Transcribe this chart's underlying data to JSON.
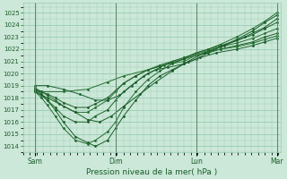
{
  "xlabel": "Pression niveau de la mer( hPa )",
  "ylim": [
    1013.5,
    1025.8
  ],
  "yticks": [
    1014,
    1015,
    1016,
    1017,
    1018,
    1019,
    1020,
    1021,
    1022,
    1023,
    1024,
    1025
  ],
  "xlim": [
    -0.15,
    3.05
  ],
  "xtick_positions": [
    0,
    1,
    2,
    3
  ],
  "xtick_labels": [
    "Sam",
    "Dim",
    "Lun",
    "Mar"
  ],
  "bg_color": "#cce8d8",
  "grid_color": "#99ccb3",
  "line_color": "#1a5c2a",
  "series": [
    {
      "x": [
        0.0,
        0.08,
        0.15,
        0.25,
        0.35,
        0.5,
        0.65,
        0.75,
        0.9,
        1.0,
        1.1,
        1.25,
        1.4,
        1.55,
        1.7,
        1.85,
        2.0,
        2.15,
        2.3,
        2.5,
        2.7,
        2.85,
        3.0
      ],
      "y": [
        1018.7,
        1018.3,
        1017.8,
        1017.0,
        1016.0,
        1014.8,
        1014.3,
        1014.0,
        1014.5,
        1015.5,
        1016.5,
        1017.8,
        1019.0,
        1019.8,
        1020.3,
        1020.8,
        1021.2,
        1021.7,
        1022.2,
        1022.8,
        1023.5,
        1024.2,
        1024.8
      ]
    },
    {
      "x": [
        0.0,
        0.08,
        0.15,
        0.25,
        0.35,
        0.5,
        0.65,
        0.75,
        0.9,
        1.0,
        1.1,
        1.25,
        1.4,
        1.55,
        1.7,
        1.85,
        2.0,
        2.15,
        2.3,
        2.5,
        2.7,
        2.85,
        3.0
      ],
      "y": [
        1018.5,
        1018.0,
        1017.4,
        1016.5,
        1015.5,
        1014.5,
        1014.2,
        1014.5,
        1015.2,
        1016.0,
        1017.2,
        1018.5,
        1019.5,
        1020.2,
        1020.8,
        1021.2,
        1021.7,
        1022.0,
        1022.4,
        1023.0,
        1023.7,
        1024.3,
        1025.0
      ]
    },
    {
      "x": [
        0.0,
        0.08,
        0.15,
        0.25,
        0.35,
        0.5,
        0.65,
        0.75,
        0.9,
        1.0,
        1.1,
        1.25,
        1.4,
        1.55,
        1.7,
        1.85,
        2.0,
        2.15,
        2.3,
        2.5,
        2.7,
        2.85,
        3.0
      ],
      "y": [
        1018.5,
        1018.2,
        1017.8,
        1017.2,
        1016.5,
        1016.0,
        1016.0,
        1016.5,
        1017.0,
        1017.8,
        1018.5,
        1019.3,
        1020.0,
        1020.5,
        1021.0,
        1021.3,
        1021.7,
        1022.0,
        1022.3,
        1022.7,
        1023.2,
        1023.7,
        1024.2
      ]
    },
    {
      "x": [
        0.0,
        0.08,
        0.15,
        0.25,
        0.35,
        0.5,
        0.65,
        0.75,
        0.9,
        1.0,
        1.1,
        1.25,
        1.4,
        1.55,
        1.7,
        1.85,
        2.0,
        2.15,
        2.3,
        2.5,
        2.7,
        2.85,
        3.0
      ],
      "y": [
        1018.8,
        1018.5,
        1018.2,
        1017.8,
        1017.3,
        1016.8,
        1016.8,
        1017.2,
        1017.8,
        1018.5,
        1019.2,
        1019.8,
        1020.3,
        1020.7,
        1021.0,
        1021.3,
        1021.6,
        1021.9,
        1022.2,
        1022.5,
        1022.9,
        1023.3,
        1023.7
      ]
    },
    {
      "x": [
        0.0,
        0.08,
        0.15,
        0.25,
        0.35,
        0.5,
        0.65,
        0.75,
        0.9,
        1.0,
        1.1,
        1.25,
        1.4,
        1.55,
        1.7,
        1.85,
        2.0,
        2.15,
        2.3,
        2.5,
        2.7,
        2.85,
        3.0
      ],
      "y": [
        1018.7,
        1018.5,
        1018.3,
        1018.0,
        1017.6,
        1017.2,
        1017.2,
        1017.5,
        1018.0,
        1018.6,
        1019.2,
        1019.8,
        1020.3,
        1020.6,
        1020.9,
        1021.2,
        1021.5,
        1021.7,
        1022.0,
        1022.3,
        1022.6,
        1023.0,
        1023.3
      ]
    },
    {
      "x": [
        0.0,
        0.35,
        0.65,
        0.9,
        1.1,
        1.4,
        1.6,
        1.85,
        2.0,
        2.15,
        2.3,
        2.5,
        2.7,
        2.85,
        3.0
      ],
      "y": [
        1018.5,
        1018.5,
        1018.7,
        1019.3,
        1019.8,
        1020.3,
        1020.7,
        1021.0,
        1021.5,
        1021.8,
        1022.0,
        1022.2,
        1022.5,
        1022.8,
        1023.1
      ]
    },
    {
      "x": [
        0.0,
        0.15,
        0.35,
        0.55,
        0.75,
        0.9,
        1.05,
        1.2,
        1.35,
        1.5,
        1.65,
        1.85,
        2.05,
        2.25,
        2.5,
        2.7,
        2.85,
        3.0
      ],
      "y": [
        1019.0,
        1019.0,
        1018.7,
        1018.3,
        1017.8,
        1017.8,
        1018.2,
        1019.0,
        1019.8,
        1020.3,
        1020.5,
        1020.8,
        1021.3,
        1021.7,
        1022.0,
        1022.3,
        1022.6,
        1022.9
      ]
    },
    {
      "x": [
        0.0,
        0.15,
        0.3,
        0.5,
        0.65,
        0.8,
        0.95,
        1.1,
        1.3,
        1.5,
        1.7,
        1.9,
        2.1,
        2.35,
        2.6,
        2.85,
        3.0
      ],
      "y": [
        1018.5,
        1018.0,
        1017.5,
        1016.8,
        1016.2,
        1016.0,
        1016.5,
        1017.3,
        1018.3,
        1019.3,
        1020.2,
        1021.0,
        1021.7,
        1022.3,
        1023.0,
        1023.8,
        1024.5
      ]
    }
  ],
  "marker": ".",
  "markersize": 2.0,
  "linewidth": 0.7
}
